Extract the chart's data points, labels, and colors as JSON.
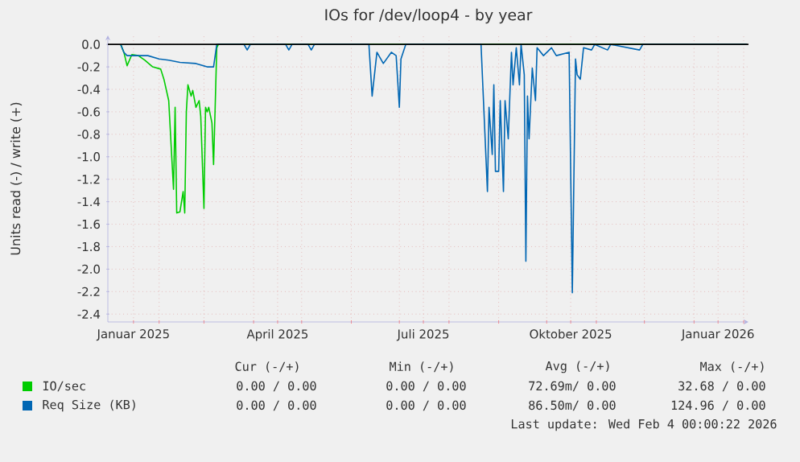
{
  "chart_data": {
    "type": "line",
    "title": "IOs for /dev/loop4 - by year",
    "ylabel": "Units read (-) / write (+)",
    "xlim": [
      "2024-12-31",
      "2026-02-04"
    ],
    "xticks": [
      {
        "value": "2025-02-01",
        "label": null
      },
      {
        "value": "2025-03-01",
        "label": null
      },
      {
        "value": "2025-04-01",
        "label": null
      },
      {
        "value": "2025-05-01",
        "label": null
      },
      {
        "value": "2025-06-01",
        "label": null
      },
      {
        "value": "2025-07-01",
        "label": null
      },
      {
        "value": "2025-08-01",
        "label": null
      },
      {
        "value": "2025-09-01",
        "label": null
      },
      {
        "value": "2025-10-01",
        "label": null
      },
      {
        "value": "2025-11-01",
        "label": null
      },
      {
        "value": "2025-12-01",
        "label": null
      },
      {
        "value": "2026-01-01",
        "label": null
      },
      {
        "value": "2026-02-01",
        "label": null
      },
      {
        "value": "2025-01-16",
        "label": "Januar 2025"
      },
      {
        "value": "2025-04-16",
        "label": "April 2025"
      },
      {
        "value": "2025-07-16",
        "label": "Juli 2025"
      },
      {
        "value": "2025-10-16",
        "label": "Oktober 2025"
      },
      {
        "value": "2026-01-16",
        "label": "Januar 2026"
      }
    ],
    "ylim": [
      -2.47,
      0.08
    ],
    "yticks": [
      -2.4,
      -2.2,
      {
        "value": -2.0,
        "label": "-2.0"
      },
      -1.8,
      -1.6,
      -1.4,
      -1.2,
      {
        "value": -1.0,
        "label": "-1.0"
      },
      -0.8,
      -0.6,
      -0.4,
      -0.2,
      {
        "value": 0,
        "label": "0.0"
      }
    ],
    "grid": true,
    "legend": "bottom",
    "ref_lines": [
      {
        "axis": "y",
        "value": 0,
        "color": "#000000"
      }
    ],
    "series": [
      {
        "name": "IO/sec",
        "color": "#00cc00",
        "x": [
          "2025-01-08",
          "2025-01-10",
          "2025-01-12",
          "2025-01-15",
          "2025-01-19",
          "2025-01-23",
          "2025-01-28",
          "2025-02-02",
          "2025-02-04",
          "2025-02-07",
          "2025-02-09",
          "2025-02-10",
          "2025-02-11",
          "2025-02-12",
          "2025-02-14",
          "2025-02-16",
          "2025-02-17",
          "2025-02-18",
          "2025-02-19",
          "2025-02-21",
          "2025-02-22",
          "2025-02-24",
          "2025-02-26",
          "2025-02-27",
          "2025-03-01",
          "2025-03-02",
          "2025-03-03",
          "2025-03-04",
          "2025-03-06",
          "2025-03-07",
          "2025-03-08",
          "2025-03-09",
          "2025-03-10",
          "2026-02-03"
        ],
        "values": [
          0,
          -0.07,
          -0.19,
          -0.09,
          -0.1,
          -0.14,
          -0.2,
          -0.22,
          -0.31,
          -0.5,
          -1.03,
          -1.29,
          -0.56,
          -1.5,
          -1.49,
          -1.31,
          -1.5,
          -0.6,
          -0.36,
          -0.46,
          -0.41,
          -0.56,
          -0.5,
          -0.64,
          -1.46,
          -0.56,
          -0.6,
          -0.56,
          -0.7,
          -1.07,
          -0.56,
          -0.03,
          0,
          0
        ]
      },
      {
        "name": "Req Size (KB)",
        "color": "#0066b3",
        "x": [
          "2025-01-08",
          "2025-01-10",
          "2025-01-12",
          "2025-01-25",
          "2025-02-01",
          "2025-02-07",
          "2025-02-14",
          "2025-02-24",
          "2025-03-03",
          "2025-03-07",
          "2025-03-09",
          "2025-03-26",
          "2025-03-28",
          "2025-03-30",
          "2025-04-21",
          "2025-04-23",
          "2025-04-25",
          "2025-05-05",
          "2025-05-07",
          "2025-05-09",
          "2025-06-12",
          "2025-06-14",
          "2025-06-17",
          "2025-06-21",
          "2025-06-26",
          "2025-06-29",
          "2025-07-01",
          "2025-07-02",
          "2025-07-05",
          "2025-08-21",
          "2025-08-25",
          "2025-08-26",
          "2025-08-28",
          "2025-08-29",
          "2025-08-30",
          "2025-09-01",
          "2025-09-02",
          "2025-09-04",
          "2025-09-05",
          "2025-09-07",
          "2025-09-09",
          "2025-09-10",
          "2025-09-12",
          "2025-09-14",
          "2025-09-15",
          "2025-09-17",
          "2025-09-18",
          "2025-09-19",
          "2025-09-20",
          "2025-09-22",
          "2025-09-24",
          "2025-09-25",
          "2025-09-29",
          "2025-10-04",
          "2025-10-07",
          "2025-10-15",
          "2025-10-17",
          "2025-10-19",
          "2025-10-20",
          "2025-10-22",
          "2025-10-24",
          "2025-10-29",
          "2025-10-31",
          "2025-11-08",
          "2025-11-10",
          "2025-11-28",
          "2025-11-30",
          "2026-02-03"
        ],
        "values": [
          0,
          -0.07,
          -0.1,
          -0.1,
          -0.13,
          -0.14,
          -0.16,
          -0.17,
          -0.2,
          -0.2,
          0,
          0,
          -0.05,
          0,
          0,
          -0.05,
          0,
          0,
          -0.05,
          0,
          0,
          -0.46,
          -0.07,
          -0.17,
          -0.07,
          -0.1,
          -0.56,
          -0.13,
          0,
          0,
          -1.31,
          -0.56,
          -0.98,
          -0.36,
          -1.13,
          -1.13,
          -0.5,
          -1.31,
          -0.5,
          -0.84,
          -0.07,
          -0.36,
          -0.03,
          -0.36,
          0,
          -0.27,
          -1.93,
          -0.46,
          -0.84,
          -0.21,
          -0.5,
          -0.03,
          -0.1,
          -0.03,
          -0.1,
          -0.07,
          -2.21,
          -0.13,
          -0.27,
          -0.31,
          -0.03,
          -0.05,
          0,
          -0.05,
          0,
          -0.05,
          0,
          0
        ]
      }
    ],
    "annotations": [
      "Cur (-/+)",
      "Min (-/+)",
      "Avg (-/+)",
      "Max (-/+)",
      "0.00 / 0.00",
      "0.00 / 0.00",
      "72.69m/ 0.00",
      "32.68 / 0.00",
      "0.00 / 0.00",
      "0.00 / 0.00",
      "86.50m/ 0.00",
      "124.96 / 0.00",
      "Last update: Wed Feb  4 00:00:22 2026"
    ]
  }
}
